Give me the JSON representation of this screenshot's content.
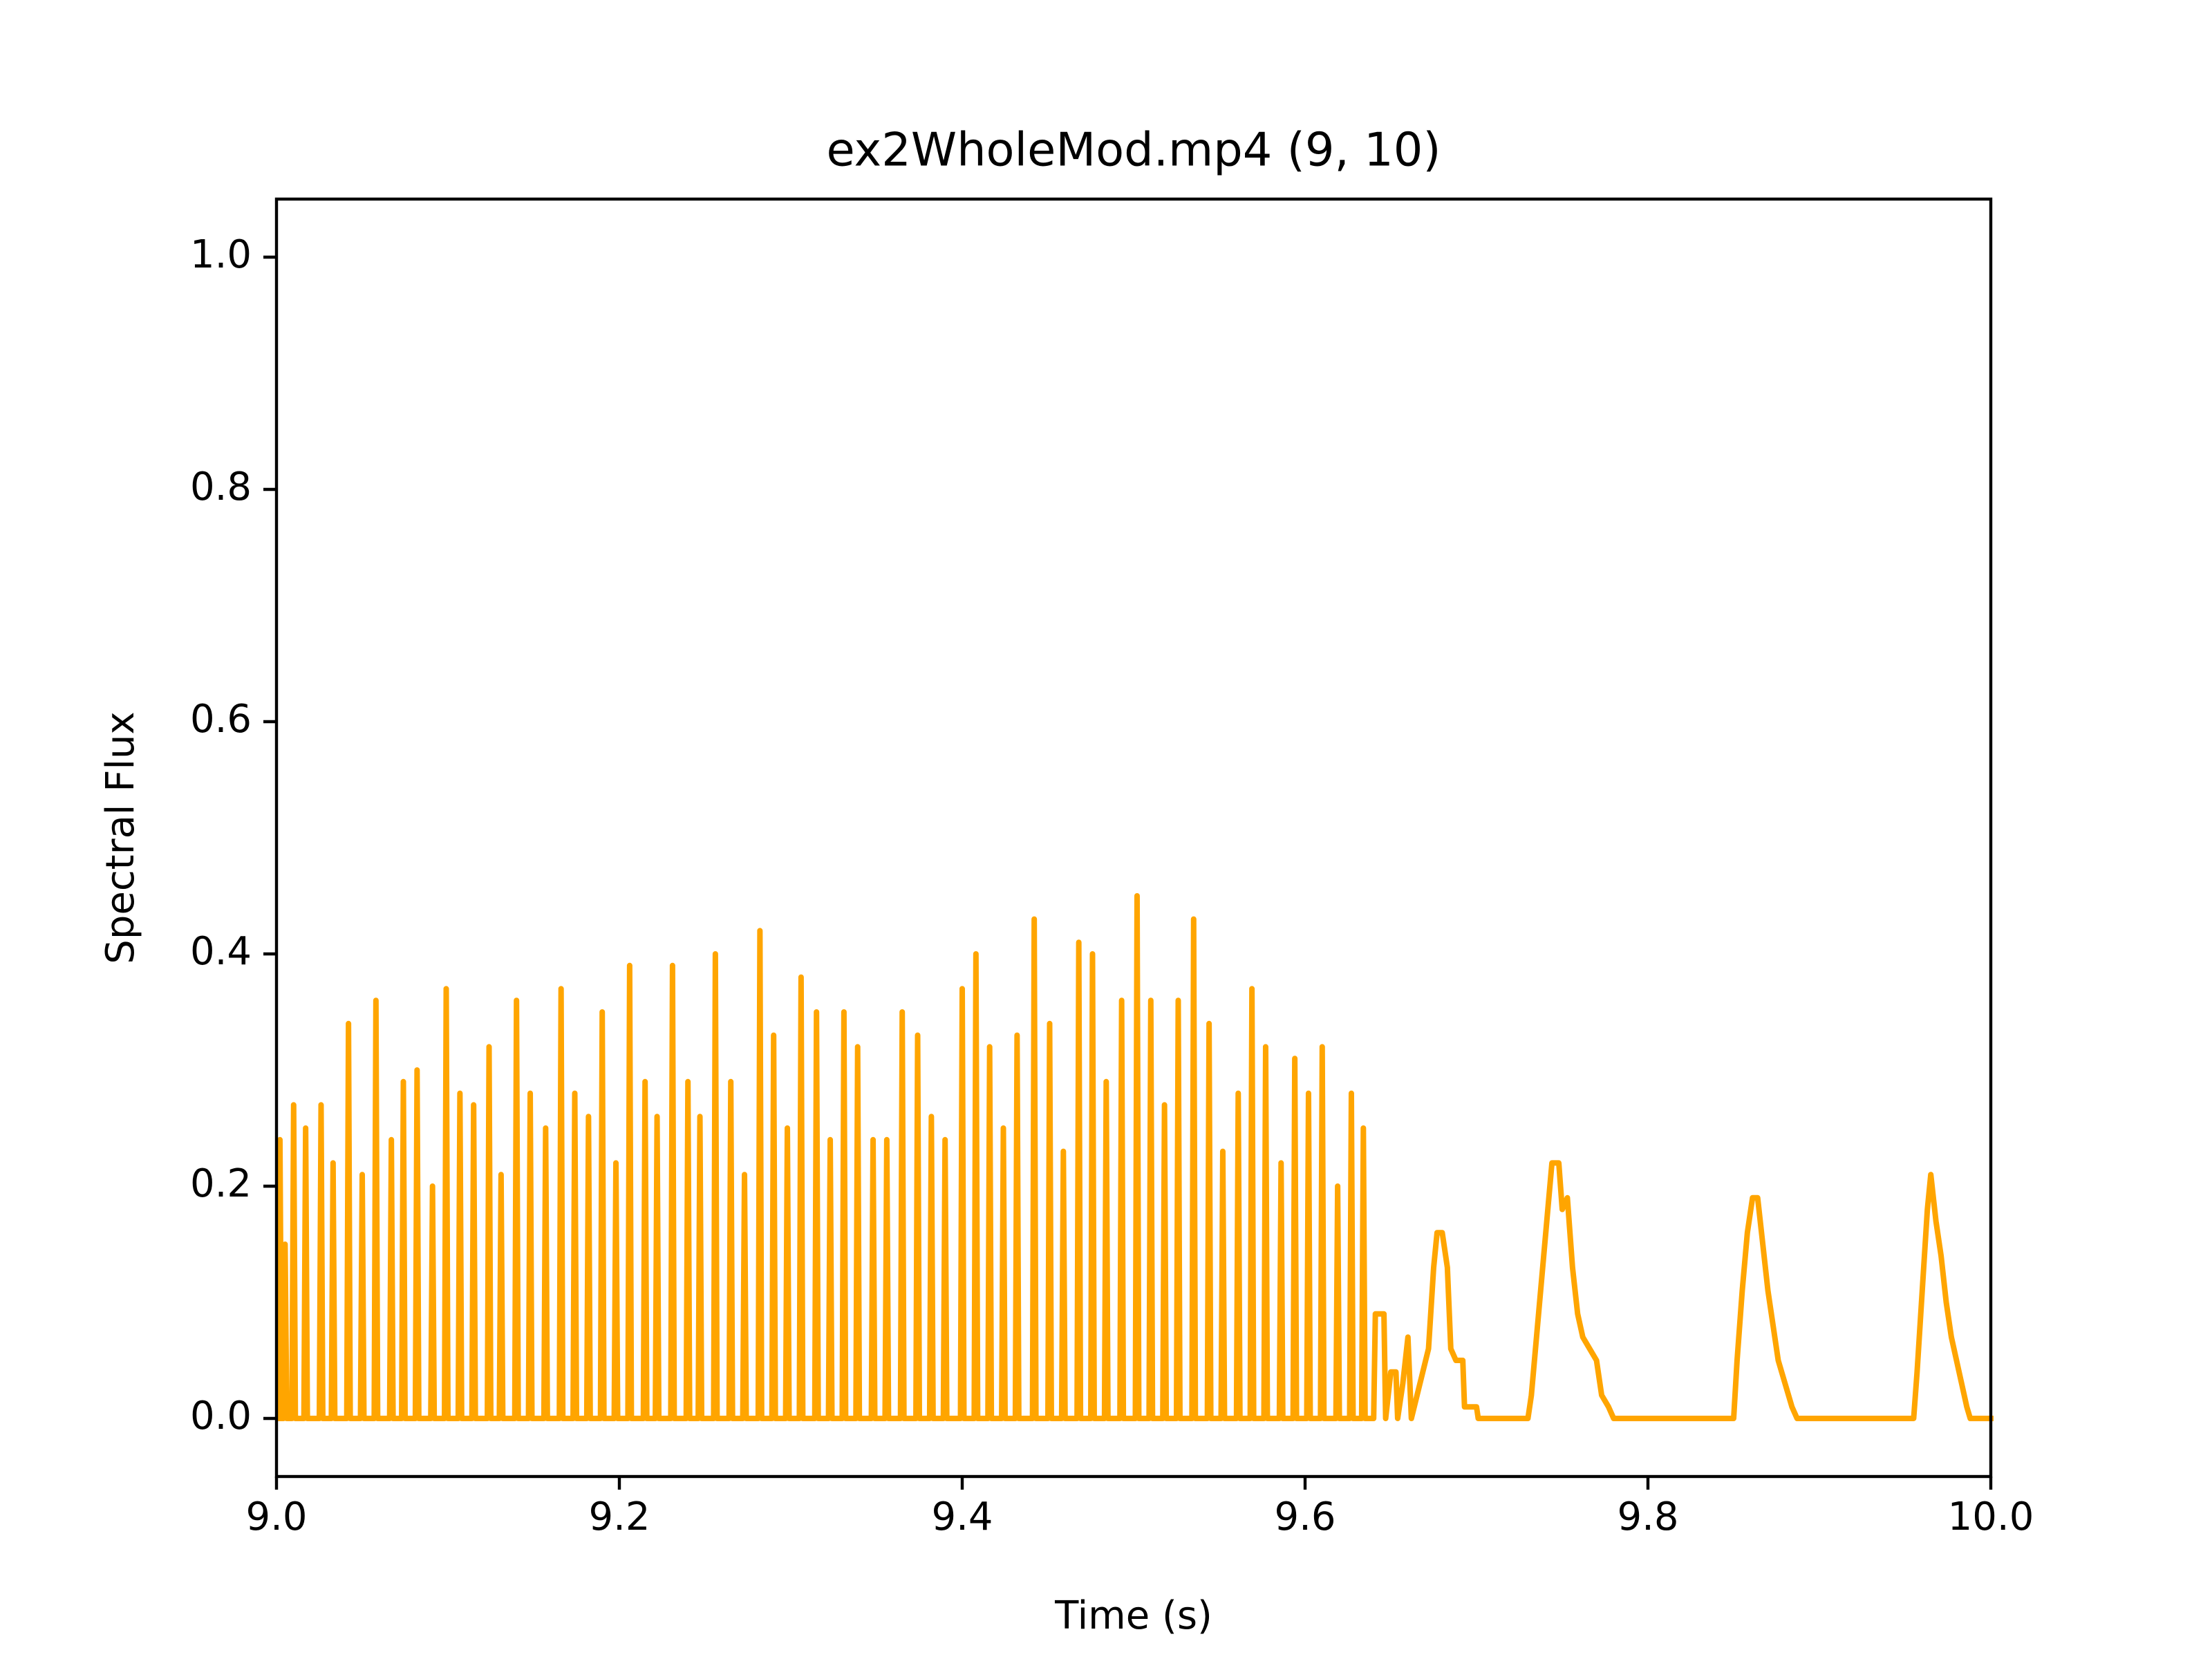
{
  "chart_data": {
    "type": "line",
    "title": "ex2WholeMod.mp4 (9, 10)",
    "x_label": "Time (s)",
    "y_label": "Spectral Flux",
    "color": "#ffa500",
    "xlim": [
      9,
      10
    ],
    "ylim": [
      -0.05,
      1.05
    ],
    "xticks": [
      {
        "value": 9,
        "label": "9.0"
      },
      9.2,
      9.4,
      9.6,
      9.8,
      {
        "value": 10,
        "label": "10.0"
      }
    ],
    "yticks": [
      {
        "value": 0,
        "label": "0.0"
      },
      0.2,
      0.4,
      0.6,
      0.8,
      {
        "value": 1,
        "label": "1.0"
      }
    ],
    "x": [
      9.001,
      9.002,
      9.003,
      9.004,
      9.005,
      9.006,
      9.009,
      9.01,
      9.011,
      9.016,
      9.017,
      9.018,
      9.025,
      9.026,
      9.027,
      9.032,
      9.033,
      9.034,
      9.041,
      9.042,
      9.043,
      9.049,
      9.05,
      9.051,
      9.057,
      9.058,
      9.059,
      9.066,
      9.067,
      9.068,
      9.073,
      9.074,
      9.075,
      9.081,
      9.082,
      9.083,
      9.09,
      9.091,
      9.092,
      9.098,
      9.099,
      9.1,
      9.106,
      9.107,
      9.108,
      9.114,
      9.115,
      9.116,
      9.123,
      9.124,
      9.125,
      9.13,
      9.131,
      9.132,
      9.139,
      9.14,
      9.141,
      9.147,
      9.148,
      9.149,
      9.156,
      9.157,
      9.158,
      9.165,
      9.166,
      9.167,
      9.173,
      9.174,
      9.175,
      9.181,
      9.182,
      9.183,
      9.189,
      9.19,
      9.191,
      9.197,
      9.198,
      9.199,
      9.205,
      9.206,
      9.207,
      9.214,
      9.215,
      9.216,
      9.221,
      9.222,
      9.223,
      9.23,
      9.231,
      9.232,
      9.239,
      9.24,
      9.241,
      9.246,
      9.247,
      9.248,
      9.255,
      9.256,
      9.257,
      9.264,
      9.265,
      9.266,
      9.272,
      9.273,
      9.274,
      9.281,
      9.282,
      9.283,
      9.289,
      9.29,
      9.291,
      9.297,
      9.298,
      9.299,
      9.305,
      9.306,
      9.307,
      9.314,
      9.315,
      9.316,
      9.322,
      9.323,
      9.324,
      9.33,
      9.331,
      9.332,
      9.338,
      9.339,
      9.34,
      9.347,
      9.348,
      9.349,
      9.355,
      9.356,
      9.357,
      9.364,
      9.365,
      9.366,
      9.373,
      9.374,
      9.375,
      9.381,
      9.382,
      9.383,
      9.389,
      9.39,
      9.391,
      9.399,
      9.4,
      9.401,
      9.407,
      9.408,
      9.409,
      9.415,
      9.416,
      9.417,
      9.423,
      9.424,
      9.425,
      9.431,
      9.432,
      9.433,
      9.441,
      9.442,
      9.443,
      9.45,
      9.451,
      9.452,
      9.458,
      9.459,
      9.46,
      9.467,
      9.468,
      9.469,
      9.475,
      9.476,
      9.477,
      9.483,
      9.484,
      9.485,
      9.492,
      9.493,
      9.494,
      9.501,
      9.502,
      9.503,
      9.509,
      9.51,
      9.511,
      9.517,
      9.518,
      9.519,
      9.525,
      9.526,
      9.527,
      9.534,
      9.535,
      9.536,
      9.543,
      9.544,
      9.545,
      9.551,
      9.552,
      9.553,
      9.56,
      9.561,
      9.562,
      9.568,
      9.569,
      9.57,
      9.576,
      9.577,
      9.578,
      9.585,
      9.586,
      9.587,
      9.593,
      9.594,
      9.595,
      9.601,
      9.602,
      9.603,
      9.609,
      9.61,
      9.611,
      9.618,
      9.619,
      9.62,
      9.626,
      9.627,
      9.628,
      9.633,
      9.634,
      9.635,
      9.64,
      9.641,
      9.646,
      9.647,
      9.65,
      9.653,
      9.654,
      9.657,
      9.66,
      9.662,
      9.672,
      9.675,
      9.677,
      9.68,
      9.683,
      9.685,
      9.688,
      9.692,
      9.693,
      9.7,
      9.701,
      9.73,
      9.732,
      9.735,
      9.738,
      9.741,
      9.744,
      9.748,
      9.75,
      9.753,
      9.756,
      9.759,
      9.762,
      9.766,
      9.77,
      9.773,
      9.777,
      9.78,
      9.85,
      9.852,
      9.855,
      9.858,
      9.861,
      9.864,
      9.867,
      9.87,
      9.873,
      9.876,
      9.88,
      9.884,
      9.887,
      9.955,
      9.957,
      9.96,
      9.963,
      9.965,
      9.968,
      9.971,
      9.974,
      9.977,
      9.98,
      9.983,
      9.986,
      9.988,
      10
    ],
    "values": [
      0,
      0.24,
      0,
      0,
      0.15,
      0,
      0,
      0.27,
      0,
      0,
      0.25,
      0,
      0,
      0.27,
      0,
      0,
      0.22,
      0,
      0,
      0.34,
      0,
      0,
      0.21,
      0,
      0,
      0.36,
      0,
      0,
      0.24,
      0,
      0,
      0.29,
      0,
      0,
      0.3,
      0,
      0,
      0.2,
      0,
      0,
      0.37,
      0,
      0,
      0.28,
      0,
      0,
      0.27,
      0,
      0,
      0.32,
      0,
      0,
      0.21,
      0,
      0,
      0.36,
      0,
      0,
      0.28,
      0,
      0,
      0.25,
      0,
      0,
      0.37,
      0,
      0,
      0.28,
      0,
      0,
      0.26,
      0,
      0,
      0.35,
      0,
      0,
      0.22,
      0,
      0,
      0.39,
      0,
      0,
      0.29,
      0,
      0,
      0.26,
      0,
      0,
      0.39,
      0,
      0,
      0.29,
      0,
      0,
      0.26,
      0,
      0,
      0.4,
      0,
      0,
      0.29,
      0,
      0,
      0.21,
      0,
      0,
      0.42,
      0,
      0,
      0.33,
      0,
      0,
      0.25,
      0,
      0,
      0.38,
      0,
      0,
      0.35,
      0,
      0,
      0.24,
      0,
      0,
      0.35,
      0,
      0,
      0.32,
      0,
      0,
      0.24,
      0,
      0,
      0.24,
      0,
      0,
      0.35,
      0,
      0,
      0.33,
      0,
      0,
      0.26,
      0,
      0,
      0.24,
      0,
      0,
      0.37,
      0,
      0,
      0.4,
      0,
      0,
      0.32,
      0,
      0,
      0.25,
      0,
      0,
      0.33,
      0,
      0,
      0.43,
      0,
      0,
      0.34,
      0,
      0,
      0.23,
      0,
      0,
      0.41,
      0,
      0,
      0.4,
      0,
      0,
      0.29,
      0,
      0,
      0.36,
      0,
      0,
      0.45,
      0,
      0,
      0.36,
      0,
      0,
      0.27,
      0,
      0,
      0.36,
      0,
      0,
      0.43,
      0,
      0,
      0.34,
      0,
      0,
      0.23,
      0,
      0,
      0.28,
      0,
      0,
      0.37,
      0,
      0,
      0.32,
      0,
      0,
      0.22,
      0,
      0,
      0.31,
      0,
      0,
      0.28,
      0,
      0,
      0.32,
      0,
      0,
      0.2,
      0,
      0,
      0.28,
      0,
      0,
      0.25,
      0,
      0,
      0.09,
      0.09,
      0,
      0.04,
      0.04,
      0,
      0.03,
      0.07,
      0,
      0.06,
      0.13,
      0.16,
      0.16,
      0.13,
      0.06,
      0.05,
      0.05,
      0.01,
      0.01,
      0,
      0,
      0.02,
      0.07,
      0.12,
      0.17,
      0.22,
      0.22,
      0.18,
      0.19,
      0.13,
      0.09,
      0.07,
      0.06,
      0.05,
      0.02,
      0.01,
      0,
      0,
      0.05,
      0.11,
      0.16,
      0.19,
      0.19,
      0.15,
      0.11,
      0.08,
      0.05,
      0.03,
      0.01,
      0,
      0,
      0.04,
      0.11,
      0.18,
      0.21,
      0.17,
      0.14,
      0.1,
      0.07,
      0.05,
      0.03,
      0.01,
      0,
      0
    ]
  }
}
